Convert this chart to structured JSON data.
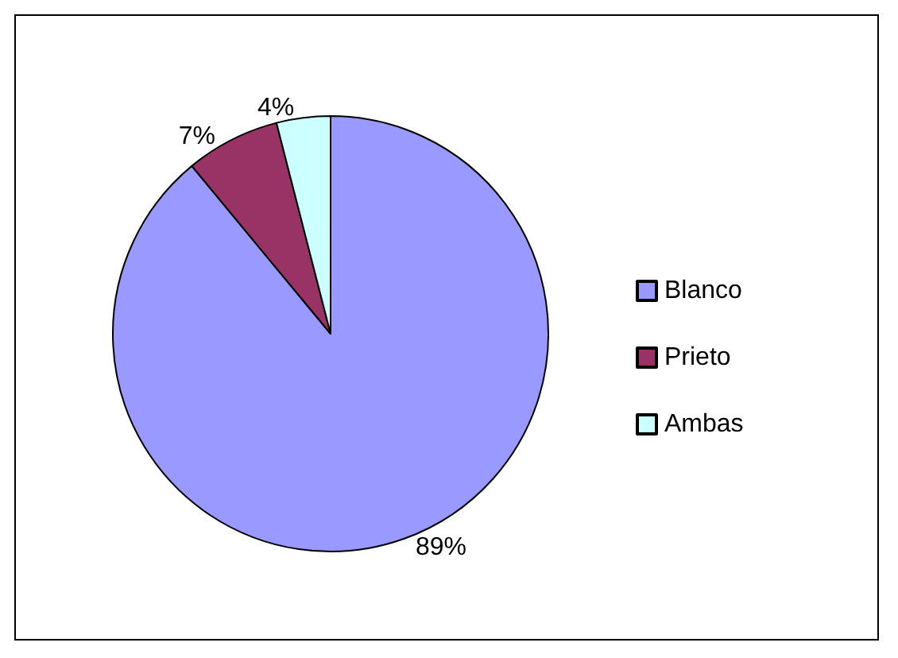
{
  "chart_data": {
    "type": "pie",
    "categories": [
      "Blanco",
      "Prieto",
      "Ambas"
    ],
    "values": [
      89,
      7,
      4
    ],
    "colors": [
      "#9999ff",
      "#993366",
      "#ccffff"
    ],
    "legend": "right",
    "value_labels": [
      "89%",
      "7%",
      "4%"
    ]
  }
}
